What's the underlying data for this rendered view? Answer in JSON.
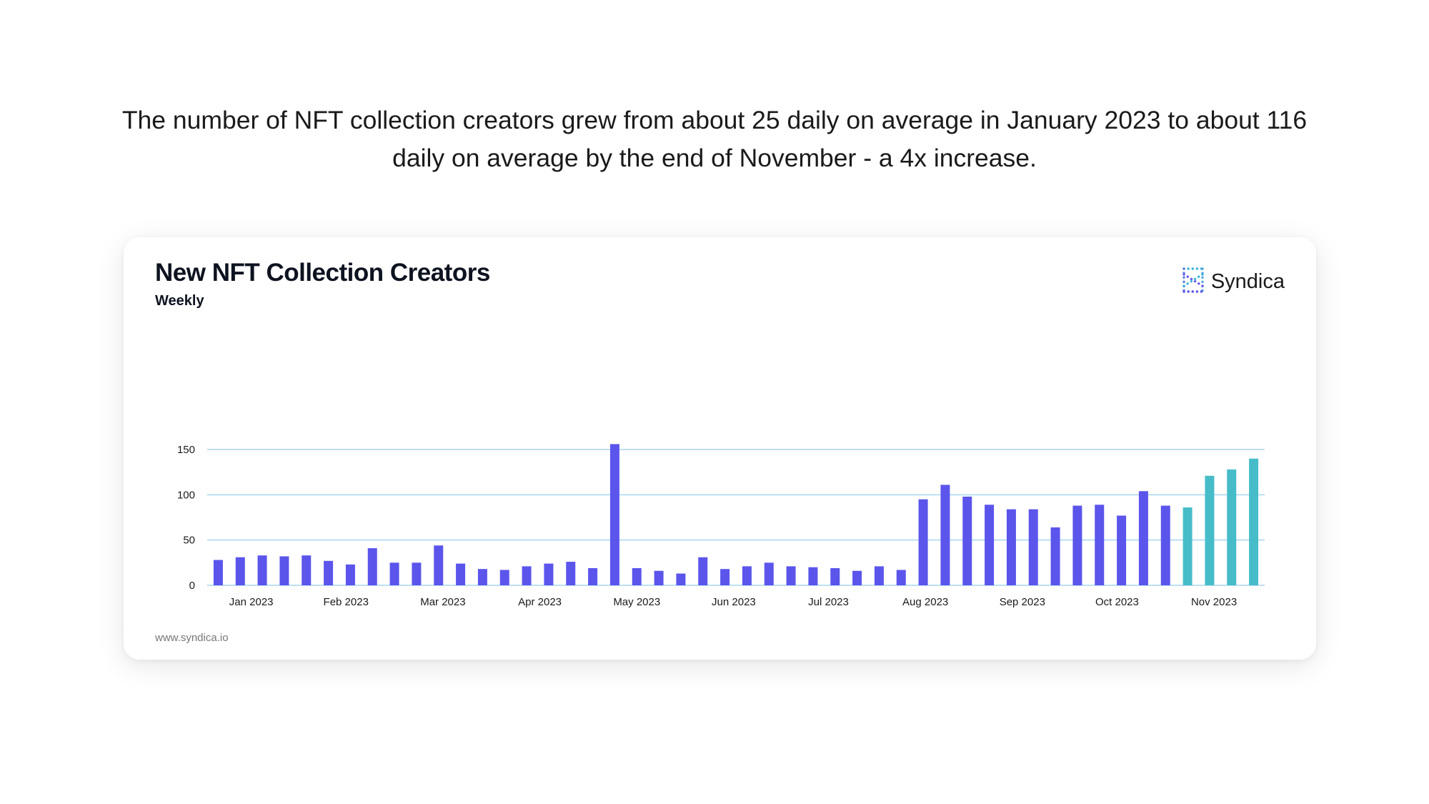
{
  "headline": "The number of NFT collection creators grew from about 25 daily on average in January 2023 to about 116 daily on average by the end of November - a 4x increase.",
  "brand": {
    "name": "Syndica",
    "logo_icon": "syndica-logo-icon"
  },
  "source": "www.syndica.io",
  "colors": {
    "bar": "#5b55ec",
    "bar_highlight": "#47bcc9",
    "grid": "#a9d6ee",
    "background": "#ffffff"
  },
  "chart_data": {
    "type": "bar",
    "title": "New NFT Collection Creators",
    "subtitle": "Weekly",
    "xlabel": "",
    "ylabel": "",
    "ylim": [
      0,
      155
    ],
    "yticks": [
      0,
      50,
      100,
      150
    ],
    "grid": true,
    "legend": "none",
    "x_ticks": [
      {
        "label": "Jan 2023",
        "index": 1.5
      },
      {
        "label": "Feb 2023",
        "index": 5.8
      },
      {
        "label": "Mar 2023",
        "index": 10.2
      },
      {
        "label": "Apr 2023",
        "index": 14.6
      },
      {
        "label": "May 2023",
        "index": 19.0
      },
      {
        "label": "Jun 2023",
        "index": 23.4
      },
      {
        "label": "Jul 2023",
        "index": 27.7
      },
      {
        "label": "Aug 2023",
        "index": 32.1
      },
      {
        "label": "Sep 2023",
        "index": 36.5
      },
      {
        "label": "Oct 2023",
        "index": 40.8
      },
      {
        "label": "Nov 2023",
        "index": 45.2
      }
    ],
    "values": [
      28,
      31,
      33,
      32,
      33,
      27,
      23,
      41,
      25,
      25,
      44,
      24,
      18,
      17,
      21,
      24,
      26,
      19,
      156,
      19,
      16,
      13,
      31,
      18,
      21,
      25,
      21,
      20,
      19,
      16,
      21,
      17,
      95,
      111,
      98,
      89,
      84,
      84,
      64,
      88,
      89,
      77,
      104,
      88,
      86,
      121,
      128,
      140
    ],
    "highlight_from_index": 44
  }
}
